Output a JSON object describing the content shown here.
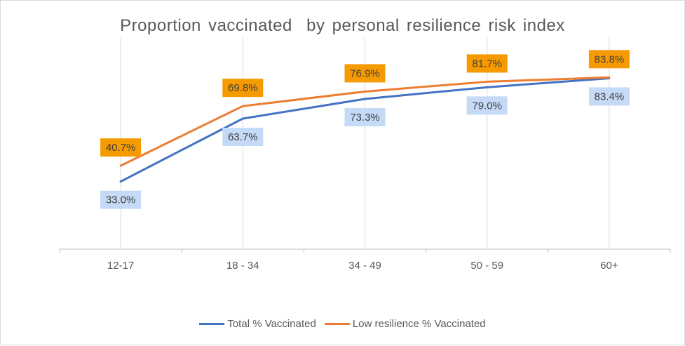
{
  "chart_data": {
    "type": "line",
    "title": "Proportion vaccinated  by personal resilience risk index",
    "categories": [
      "12-17",
      "18 - 34",
      "34 - 49",
      "50 - 59",
      "60+"
    ],
    "ylim": [
      0,
      100
    ],
    "grid": "vertical",
    "legend_position": "bottom",
    "series": [
      {
        "name": "Total % Vaccinated",
        "color": "#4472c4",
        "label_bg": "#c5daf6",
        "label_position": "below",
        "values": [
          33.0,
          63.7,
          73.3,
          79.0,
          83.4
        ],
        "labels": [
          "33.0%",
          "63.7%",
          "73.3%",
          "79.0%",
          "83.4%"
        ]
      },
      {
        "name": "Low resilience % Vaccinated",
        "color": "#ed7d31",
        "label_bg": "#f59a00",
        "label_position": "above",
        "values": [
          40.7,
          69.8,
          76.9,
          81.7,
          83.8
        ],
        "labels": [
          "40.7%",
          "69.8%",
          "76.9%",
          "81.7%",
          "83.8%"
        ]
      }
    ]
  }
}
